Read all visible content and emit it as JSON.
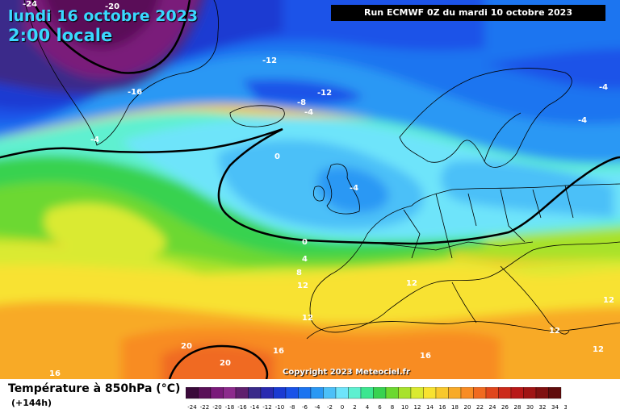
{
  "header": {
    "date": "lundi 16 octobre 2023",
    "time": "2:00 locale",
    "run": "Run ECMWF 0Z du mardi 10 octobre 2023"
  },
  "footer": {
    "parameter": "Température à 850hPa (°C)",
    "lead_time": "(+144h)",
    "copyright": "Copyright 2023 Meteociel.fr"
  },
  "legend": {
    "ticks": [
      "-24",
      "-22",
      "-20",
      "-18",
      "-16",
      "-14",
      "-12",
      "-10",
      "-8",
      "-6",
      "-4",
      "-2",
      "0",
      "2",
      "4",
      "6",
      "8",
      "10",
      "12",
      "14",
      "16",
      "18",
      "20",
      "22",
      "24",
      "26",
      "28",
      "30",
      "32",
      "34",
      "36"
    ],
    "colors": [
      "#3a0a3a",
      "#5a1058",
      "#7a1a7a",
      "#8c2a8c",
      "#60206e",
      "#3a2a8a",
      "#2a2ab0",
      "#1a3ad2",
      "#1a52e8",
      "#1c74f0",
      "#2a98f4",
      "#4cc0f8",
      "#6ee4fa",
      "#5ef0d0",
      "#3ce690",
      "#38d250",
      "#6cd830",
      "#a8e22c",
      "#daea30",
      "#f8e230",
      "#f8c82c",
      "#f8aa28",
      "#f88c24",
      "#f06a20",
      "#e0461c",
      "#cc2a1a",
      "#b81818",
      "#a01414",
      "#801010",
      "#600c0c"
    ]
  },
  "contours": [
    {
      "value": "-24"
    },
    {
      "value": "-20"
    },
    {
      "value": "-16"
    },
    {
      "value": "-12"
    },
    {
      "value": "-12"
    },
    {
      "value": "-8"
    },
    {
      "value": "-4"
    },
    {
      "value": "-4"
    },
    {
      "value": "-4"
    },
    {
      "value": "-4"
    },
    {
      "value": "-4"
    },
    {
      "value": "0"
    },
    {
      "value": "0"
    },
    {
      "value": "4"
    },
    {
      "value": "8"
    },
    {
      "value": "12"
    },
    {
      "value": "12"
    },
    {
      "value": "12"
    },
    {
      "value": "12"
    },
    {
      "value": "12"
    },
    {
      "value": "12"
    },
    {
      "value": "16"
    },
    {
      "value": "16"
    },
    {
      "value": "16"
    },
    {
      "value": "20"
    },
    {
      "value": "20"
    }
  ]
}
